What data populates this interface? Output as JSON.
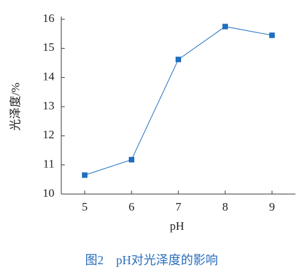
{
  "chart_data": {
    "type": "line",
    "caption": "图2　pH对光泽度的影响",
    "x_label": "pH",
    "y_label": "光泽度/%",
    "x": [
      5,
      6,
      7,
      8,
      9
    ],
    "series": [
      {
        "name": "光泽度",
        "color": "#1f6fc0",
        "values": [
          10.65,
          11.18,
          14.62,
          15.75,
          15.45
        ]
      }
    ],
    "xlim": [
      4.5,
      9.5
    ],
    "xticks": [
      5,
      6,
      7,
      8,
      9
    ],
    "ylim": [
      10,
      16
    ],
    "yticks": [
      10,
      11,
      12,
      13,
      14,
      15,
      16
    ]
  }
}
